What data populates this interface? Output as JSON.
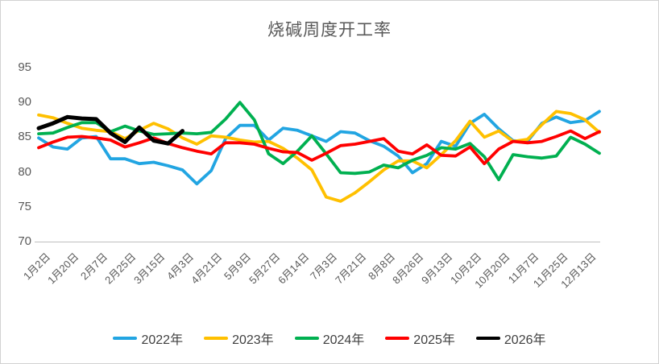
{
  "chart_data": {
    "type": "line",
    "title": "烧碱周度开工率",
    "xlabel": "",
    "ylabel": "",
    "grid": false,
    "legend_position": "bottom",
    "y_axis": {
      "min": 70,
      "max": 95,
      "ticks": [
        95,
        90,
        85,
        80,
        75,
        70
      ]
    },
    "x_labels": [
      "1月2日",
      "1月20日",
      "2月7日",
      "2月25日",
      "3月15日",
      "4月3日",
      "4月21日",
      "5月9日",
      "5月27日",
      "6月14日",
      "7月3日",
      "7月21日",
      "8月8日",
      "8月26日",
      "9月13日",
      "10月2日",
      "10月20日",
      "11月7日",
      "11月25日",
      "12月13日"
    ],
    "axis_color": "#bfbfbf",
    "text_color": "#595959",
    "series": [
      {
        "name": "2022年",
        "color": "#22a5e2",
        "width": 3.8,
        "values": [
          84.9,
          83.6,
          83.3,
          84.9,
          85.1,
          81.9,
          81.9,
          81.2,
          81.4,
          80.9,
          80.3,
          78.3,
          80.2,
          84.8,
          86.7,
          86.7,
          84.6,
          86.3,
          86.0,
          85.2,
          84.4,
          85.8,
          85.6,
          84.5,
          83.7,
          82.3,
          79.9,
          81.2,
          84.4,
          83.7,
          87.0,
          88.3,
          86.2,
          84.5,
          84.4,
          87.0,
          87.9,
          87.1,
          87.4,
          88.7
        ]
      },
      {
        "name": "2023年",
        "color": "#ffc000",
        "width": 3.8,
        "values": [
          88.2,
          87.8,
          87.0,
          86.3,
          86.0,
          85.8,
          84.8,
          86.0,
          87.0,
          86.2,
          84.9,
          84.0,
          85.2,
          85.0,
          84.6,
          84.3,
          84.4,
          83.4,
          82.0,
          80.3,
          76.4,
          75.8,
          77.0,
          78.6,
          80.3,
          81.6,
          81.6,
          80.6,
          82.5,
          84.5,
          87.3,
          85.0,
          85.9,
          84.4,
          84.7,
          86.8,
          88.7,
          88.4,
          87.5,
          85.7
        ]
      },
      {
        "name": "2024年",
        "color": "#00b050",
        "width": 3.8,
        "values": [
          85.5,
          85.6,
          86.4,
          87.1,
          87.1,
          85.8,
          86.6,
          85.9,
          85.4,
          85.5,
          85.6,
          85.5,
          85.7,
          87.6,
          90.0,
          87.5,
          82.6,
          81.2,
          83.0,
          85.2,
          82.6,
          79.9,
          79.8,
          80.0,
          81.0,
          80.6,
          81.7,
          82.4,
          83.5,
          83.3,
          84.1,
          82.2,
          78.9,
          82.5,
          82.2,
          82.0,
          82.3,
          85.0,
          84.0,
          82.7
        ]
      },
      {
        "name": "2025年",
        "color": "#ff0000",
        "width": 3.8,
        "values": [
          83.5,
          84.3,
          85.0,
          85.1,
          84.9,
          84.6,
          83.6,
          84.2,
          84.9,
          84.1,
          83.5,
          83.0,
          82.6,
          84.2,
          84.2,
          84.0,
          83.4,
          82.9,
          82.8,
          81.7,
          82.7,
          83.8,
          84.0,
          84.4,
          84.8,
          83.0,
          82.6,
          83.9,
          82.4,
          82.3,
          83.6,
          81.2,
          83.3,
          84.4,
          84.2,
          84.4,
          85.1,
          85.9,
          84.8,
          85.8
        ]
      },
      {
        "name": "2026年",
        "color": "#000000",
        "width": 5,
        "values": [
          86.3,
          87.0,
          87.9,
          87.7,
          87.6,
          85.6,
          84.3,
          86.4,
          84.5,
          84.1,
          85.9
        ]
      }
    ]
  }
}
